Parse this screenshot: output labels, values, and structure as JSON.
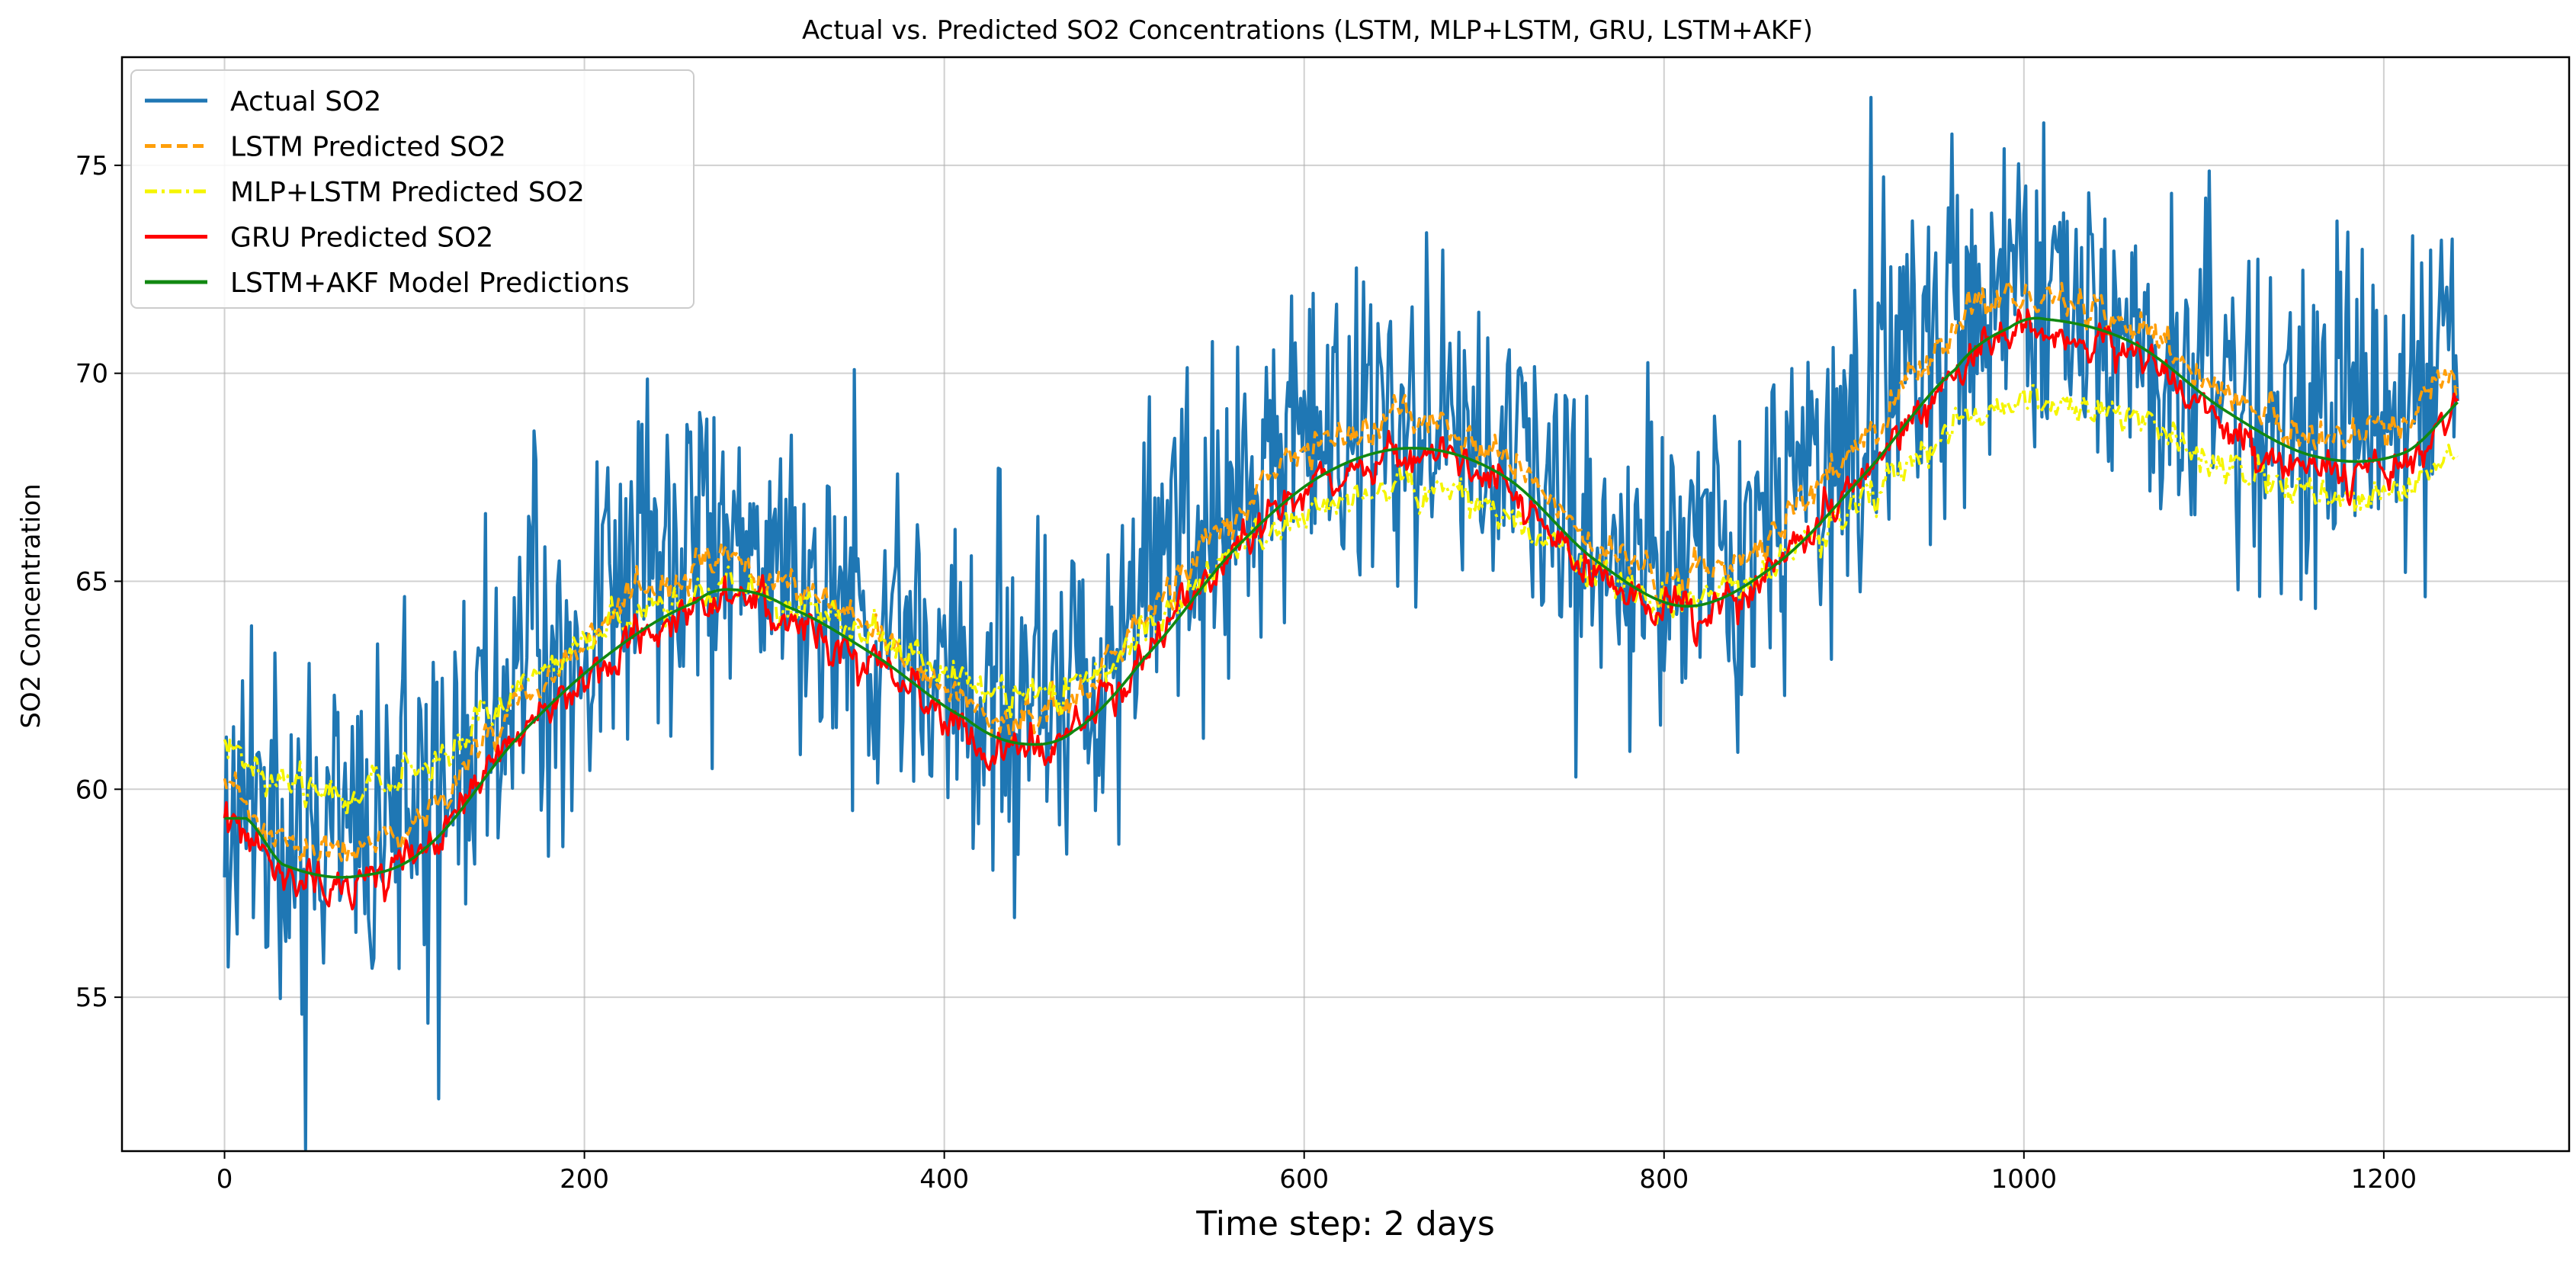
{
  "chart_data": {
    "type": "line",
    "title": "Actual vs. Predicted SO2 Concentrations (LSTM, MLP+LSTM, GRU, LSTM+AKF)",
    "xlabel": "Time step: 2 days",
    "ylabel": "SO2 Concentration",
    "xlim": [
      -57,
      1303
    ],
    "ylim": [
      51.3,
      77.6
    ],
    "xticks": [
      0,
      200,
      400,
      600,
      800,
      1000,
      1200
    ],
    "xtick_labels": [
      "0",
      "200",
      "400",
      "600",
      "800",
      "1000",
      "1200"
    ],
    "yticks": [
      55,
      60,
      65,
      70,
      75
    ],
    "ytick_labels": [
      "55",
      "60",
      "65",
      "70",
      "75"
    ],
    "grid": true,
    "legend_position": "upper-left",
    "n_points": 1242,
    "trend_anchors": {
      "x": [
        0,
        20,
        60,
        100,
        150,
        200,
        250,
        270,
        300,
        350,
        400,
        430,
        460,
        500,
        550,
        600,
        650,
        700,
        750,
        800,
        850,
        900,
        950,
        980,
        1000,
        1050,
        1100,
        1150,
        1200,
        1241
      ],
      "y": [
        59.3,
        58.2,
        57.9,
        58.6,
        61.2,
        63.2,
        64.5,
        64.8,
        64.4,
        63.2,
        61.7,
        61.1,
        61.4,
        63.2,
        65.8,
        67.6,
        68.2,
        67.5,
        65.5,
        64.4,
        65.4,
        67.6,
        70.1,
        71.1,
        71.3,
        70.7,
        69.1,
        68.0,
        68.1,
        69.7
      ]
    },
    "series": [
      {
        "name": "Actual SO2",
        "color": "#1f77b4",
        "style": "solid",
        "offset": 0.8,
        "noise_std": 1.95,
        "seed": 11,
        "spike_prob": 0.05
      },
      {
        "name": "LSTM Predicted SO2",
        "color": "#ff9f0a",
        "style": "dashed",
        "offset": 0.6,
        "noise_std": 0.4,
        "seed": 23,
        "lag": 6
      },
      {
        "name": "MLP+LSTM Predicted SO2",
        "color": "#f5f500",
        "style": "dashdot",
        "offset": -0.25,
        "noise_std": 0.4,
        "seed": 37,
        "lag": 8,
        "scale": 0.7
      },
      {
        "name": "GRU Predicted SO2",
        "color": "#ff0000",
        "style": "solid",
        "offset": -0.2,
        "noise_std": 0.45,
        "seed": 53,
        "lag": 7
      },
      {
        "name": "LSTM+AKF Model Predictions",
        "color": "#118811",
        "style": "solid",
        "offset": 0.0,
        "noise_std": 0.0,
        "seed": 71,
        "lag": 12,
        "smooth": true
      }
    ]
  }
}
